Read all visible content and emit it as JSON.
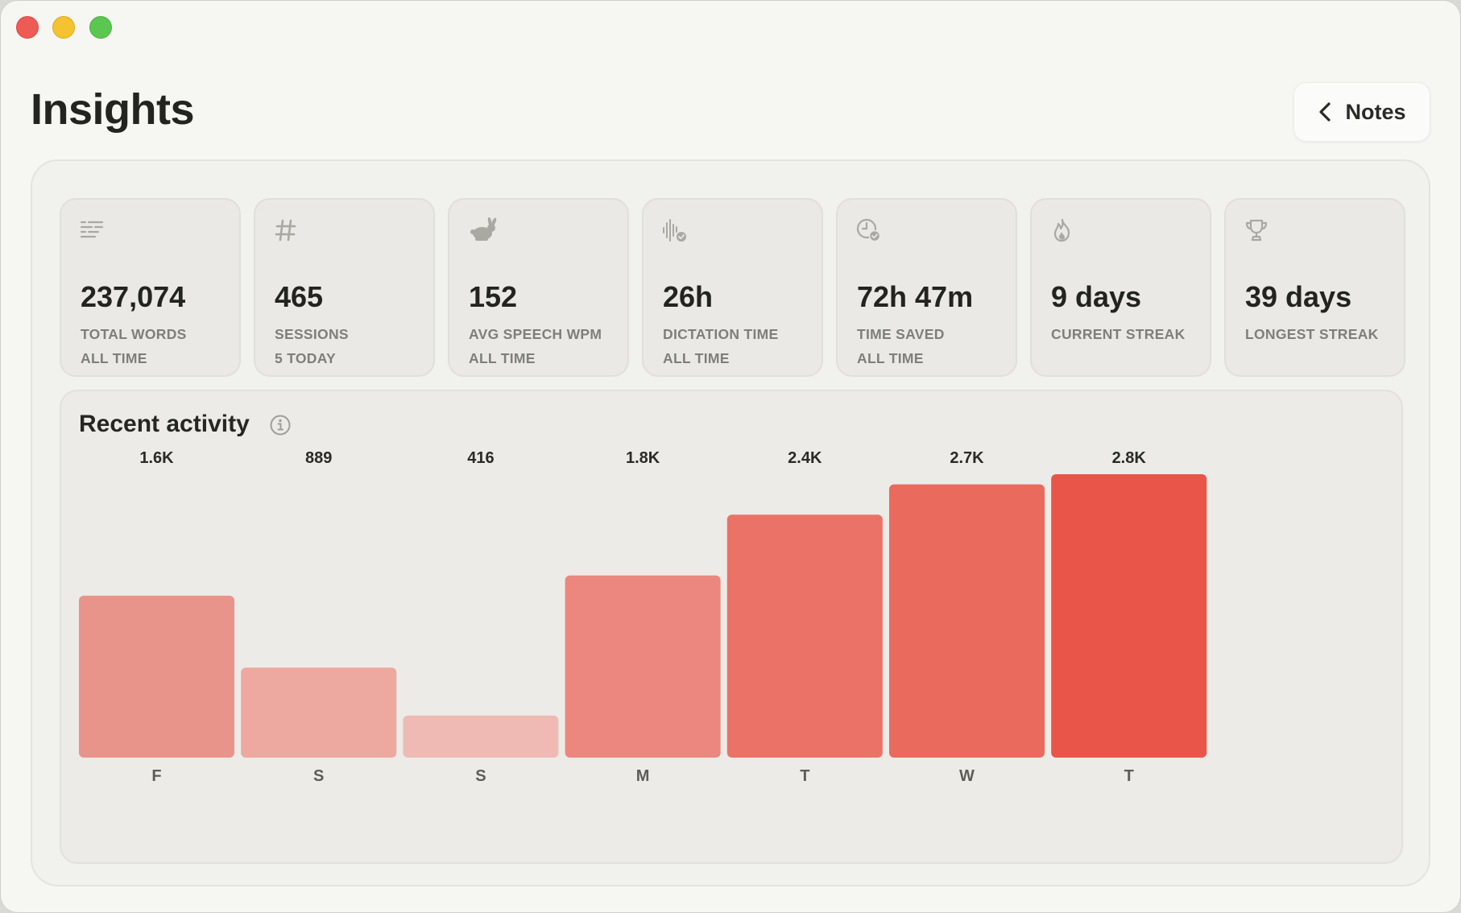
{
  "window": {
    "title": "Insights",
    "traffic_lights": [
      "close",
      "minimize",
      "zoom"
    ]
  },
  "header": {
    "title": "Insights",
    "back_button": {
      "label": "Notes",
      "icon": "chevron-left-icon"
    }
  },
  "stats": [
    {
      "icon": "text-lines-icon",
      "value": "237,074",
      "label": "TOTAL WORDS",
      "sub": "ALL TIME"
    },
    {
      "icon": "hash-icon",
      "value": "465",
      "label": "SESSIONS",
      "sub": "5 TODAY"
    },
    {
      "icon": "rabbit-icon",
      "value": "152",
      "label": "AVG SPEECH WPM",
      "sub": "ALL TIME"
    },
    {
      "icon": "waveform-check-icon",
      "value": "26h",
      "label": "DICTATION TIME",
      "sub": "ALL TIME"
    },
    {
      "icon": "clock-check-icon",
      "value": "72h 47m",
      "label": "TIME SAVED",
      "sub": "ALL TIME"
    },
    {
      "icon": "flame-icon",
      "value": "9 days",
      "label": "CURRENT STREAK",
      "sub": ""
    },
    {
      "icon": "trophy-icon",
      "value": "39 days",
      "label": "LONGEST STREAK",
      "sub": ""
    }
  ],
  "activity": {
    "title": "Recent activity",
    "info_icon": "info-icon"
  },
  "chart_data": {
    "type": "bar",
    "title": "Recent activity",
    "categories": [
      "F",
      "S",
      "S",
      "M",
      "T",
      "W",
      "T"
    ],
    "values": [
      1600,
      889,
      416,
      1800,
      2400,
      2700,
      2800
    ],
    "value_labels": [
      "1.6K",
      "889",
      "416",
      "1.8K",
      "2.4K",
      "2.7K",
      "2.8K"
    ],
    "xlabel": "",
    "ylabel": "",
    "ylim": [
      0,
      2800
    ],
    "grid": false,
    "colors": [
      "#e8948b",
      "#eda89f",
      "#eebab3",
      "#eb877e",
      "#eb7266",
      "#ea6a5e",
      "#e95548"
    ]
  },
  "colors": {
    "background": "#f6f6f3",
    "card": "#eae9e5",
    "accent": "#e95548",
    "text": "#232320",
    "muted": "#7f7e7a"
  }
}
